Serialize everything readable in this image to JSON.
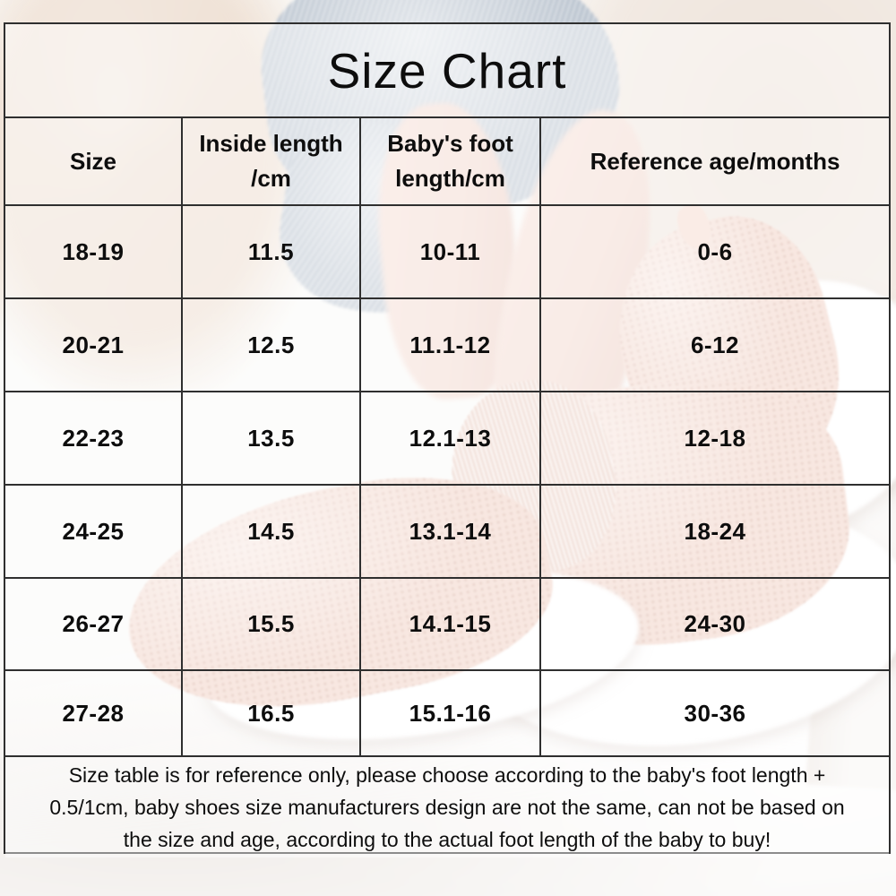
{
  "title": "Size Chart",
  "table": {
    "columns": [
      "Size",
      "Inside length /cm",
      "Baby's foot length/cm",
      "Reference age/months"
    ],
    "rows": [
      [
        "18-19",
        "11.5",
        "10-11",
        "0-6"
      ],
      [
        "20-21",
        "12.5",
        "11.1-12",
        "6-12"
      ],
      [
        "22-23",
        "13.5",
        "12.1-13",
        "12-18"
      ],
      [
        "24-25",
        "14.5",
        "13.1-14",
        "18-24"
      ],
      [
        "26-27",
        "15.5",
        "14.1-15",
        "24-30"
      ],
      [
        "27-28",
        "16.5",
        "15.1-16",
        "30-36"
      ]
    ]
  },
  "footer": {
    "lines": [
      "Size table is for reference only, please choose according to the baby's foot length +",
      "0.5/1cm, baby shoes size manufacturers design are not the same, can not be based on",
      "the size and age, according to the actual foot length of the baby to buy!"
    ]
  },
  "chart_data": {
    "type": "table",
    "title": "Size Chart",
    "columns": [
      "Size",
      "Inside length /cm",
      "Baby's foot length/cm",
      "Reference age/months"
    ],
    "rows": [
      [
        "18-19",
        "11.5",
        "10-11",
        "0-6"
      ],
      [
        "20-21",
        "12.5",
        "11.1-12",
        "6-12"
      ],
      [
        "22-23",
        "13.5",
        "12.1-13",
        "12-18"
      ],
      [
        "24-25",
        "14.5",
        "13.1-14",
        "18-24"
      ],
      [
        "26-27",
        "15.5",
        "14.1-15",
        "24-30"
      ],
      [
        "27-28",
        "16.5",
        "15.1-16",
        "30-36"
      ]
    ],
    "note": "Size table is for reference only, please choose according to the baby's foot length + 0.5/1cm, baby shoes size manufacturers design are not the same, can not be based on the size and age, according to the actual foot length of the baby to buy!"
  },
  "colors": {
    "border": "#2f2f2f",
    "text": "#0d0d0d",
    "overlay": "rgba(255,255,255,0.45)",
    "denim": "#c3ccd6",
    "knit-pink": "#f2d4c8",
    "plush-beige": "#e4cdba",
    "cream": "#eee3da",
    "skin-pink": "#f4dcd3",
    "sole-white": "#ffffff",
    "bed-white": "#fafaf8"
  }
}
